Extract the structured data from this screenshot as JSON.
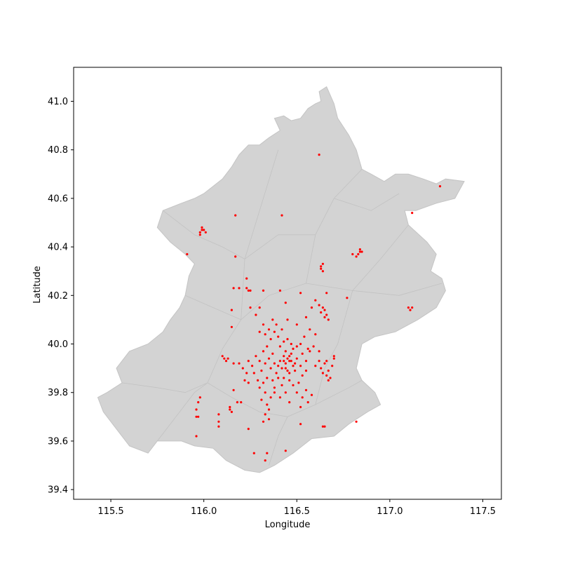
{
  "figure": {
    "xlabel": "Longitude",
    "ylabel": "Latitude",
    "title": ""
  },
  "chart_data": {
    "type": "scatter",
    "title": "",
    "xlabel": "Longitude",
    "ylabel": "Latitude",
    "xlim": [
      115.3,
      117.6
    ],
    "ylim": [
      39.36,
      41.14
    ],
    "xticks": [
      115.5,
      116.0,
      116.5,
      117.0,
      117.5
    ],
    "yticks": [
      39.4,
      39.6,
      39.8,
      40.0,
      40.2,
      40.4,
      40.6,
      40.8,
      41.0
    ],
    "xtick_labels": [
      "115.5",
      "116.0",
      "116.5",
      "117.0",
      "117.5"
    ],
    "ytick_labels": [
      "39.4",
      "39.6",
      "39.8",
      "40.0",
      "40.2",
      "40.4",
      "40.6",
      "40.8",
      "41.0"
    ],
    "grid": false,
    "legend": "none",
    "colors": {
      "points": "#ff0000",
      "region_fill": "#d3d3d3",
      "region_edge": "#c4c4c4",
      "axes": "#000000"
    },
    "background_region": "Beijing municipality district boundaries",
    "boundary": [
      [
        115.43,
        39.78
      ],
      [
        115.48,
        39.8
      ],
      [
        115.56,
        39.84
      ],
      [
        115.53,
        39.9
      ],
      [
        115.6,
        39.97
      ],
      [
        115.7,
        40.0
      ],
      [
        115.78,
        40.05
      ],
      [
        115.82,
        40.1
      ],
      [
        115.87,
        40.15
      ],
      [
        115.9,
        40.2
      ],
      [
        115.92,
        40.28
      ],
      [
        115.95,
        40.33
      ],
      [
        115.9,
        40.37
      ],
      [
        115.82,
        40.42
      ],
      [
        115.75,
        40.48
      ],
      [
        115.78,
        40.55
      ],
      [
        115.88,
        40.58
      ],
      [
        115.95,
        40.6
      ],
      [
        116.0,
        40.62
      ],
      [
        116.05,
        40.65
      ],
      [
        116.1,
        40.68
      ],
      [
        116.15,
        40.73
      ],
      [
        116.19,
        40.78
      ],
      [
        116.24,
        40.82
      ],
      [
        116.3,
        40.82
      ],
      [
        116.35,
        40.85
      ],
      [
        116.41,
        40.88
      ],
      [
        116.38,
        40.93
      ],
      [
        116.43,
        40.94
      ],
      [
        116.47,
        40.92
      ],
      [
        116.52,
        40.93
      ],
      [
        116.56,
        40.97
      ],
      [
        116.6,
        40.99
      ],
      [
        116.63,
        41.0
      ],
      [
        116.62,
        41.04
      ],
      [
        116.66,
        41.06
      ],
      [
        116.7,
        40.99
      ],
      [
        116.72,
        40.93
      ],
      [
        116.78,
        40.86
      ],
      [
        116.82,
        40.8
      ],
      [
        116.85,
        40.72
      ],
      [
        116.9,
        40.7
      ],
      [
        116.97,
        40.67
      ],
      [
        117.03,
        40.7
      ],
      [
        117.1,
        40.7
      ],
      [
        117.18,
        40.68
      ],
      [
        117.25,
        40.66
      ],
      [
        117.3,
        40.68
      ],
      [
        117.4,
        40.67
      ],
      [
        117.35,
        40.6
      ],
      [
        117.25,
        40.58
      ],
      [
        117.14,
        40.55
      ],
      [
        117.08,
        40.55
      ],
      [
        117.1,
        40.49
      ],
      [
        117.2,
        40.42
      ],
      [
        117.25,
        40.37
      ],
      [
        117.22,
        40.3
      ],
      [
        117.28,
        40.27
      ],
      [
        117.3,
        40.22
      ],
      [
        117.25,
        40.15
      ],
      [
        117.15,
        40.1
      ],
      [
        117.03,
        40.05
      ],
      [
        116.92,
        40.03
      ],
      [
        116.85,
        40.0
      ],
      [
        116.82,
        39.9
      ],
      [
        116.85,
        39.85
      ],
      [
        116.92,
        39.8
      ],
      [
        116.95,
        39.75
      ],
      [
        116.88,
        39.72
      ],
      [
        116.78,
        39.67
      ],
      [
        116.7,
        39.62
      ],
      [
        116.58,
        39.61
      ],
      [
        116.48,
        39.55
      ],
      [
        116.38,
        39.5
      ],
      [
        116.3,
        39.47
      ],
      [
        116.22,
        39.48
      ],
      [
        116.12,
        39.52
      ],
      [
        116.05,
        39.57
      ],
      [
        115.95,
        39.58
      ],
      [
        115.88,
        39.6
      ],
      [
        115.75,
        39.6
      ],
      [
        115.7,
        39.55
      ],
      [
        115.6,
        39.58
      ],
      [
        115.52,
        39.66
      ],
      [
        115.46,
        39.72
      ]
    ],
    "series": [
      {
        "points": [
          [
            116.46,
            39.93
          ],
          [
            116.44,
            39.92
          ],
          [
            116.48,
            39.91
          ],
          [
            116.42,
            39.9
          ],
          [
            116.5,
            39.94
          ],
          [
            116.47,
            39.96
          ],
          [
            116.45,
            39.89
          ],
          [
            116.41,
            39.93
          ],
          [
            116.43,
            39.95
          ],
          [
            116.49,
            39.92
          ],
          [
            116.46,
            39.88
          ],
          [
            116.52,
            39.91
          ],
          [
            116.4,
            39.91
          ],
          [
            116.44,
            39.97
          ],
          [
            116.48,
            39.98
          ],
          [
            116.47,
            40.0
          ],
          [
            116.45,
            40.02
          ],
          [
            116.5,
            39.99
          ],
          [
            116.43,
            40.01
          ],
          [
            116.41,
            39.99
          ],
          [
            116.38,
            39.92
          ],
          [
            116.36,
            39.9
          ],
          [
            116.35,
            39.94
          ],
          [
            116.37,
            39.96
          ],
          [
            116.39,
            39.88
          ],
          [
            116.33,
            39.92
          ],
          [
            116.31,
            39.89
          ],
          [
            116.3,
            39.93
          ],
          [
            116.32,
            39.97
          ],
          [
            116.34,
            39.99
          ],
          [
            116.36,
            40.02
          ],
          [
            116.38,
            40.05
          ],
          [
            116.35,
            40.06
          ],
          [
            116.33,
            40.04
          ],
          [
            116.4,
            40.03
          ],
          [
            116.42,
            40.06
          ],
          [
            116.39,
            40.08
          ],
          [
            116.37,
            40.1
          ],
          [
            116.32,
            40.08
          ],
          [
            116.3,
            40.05
          ],
          [
            116.28,
            39.95
          ],
          [
            116.26,
            39.91
          ],
          [
            116.24,
            39.93
          ],
          [
            116.27,
            39.88
          ],
          [
            116.29,
            39.85
          ],
          [
            116.32,
            39.84
          ],
          [
            116.34,
            39.86
          ],
          [
            116.37,
            39.85
          ],
          [
            116.4,
            39.86
          ],
          [
            116.43,
            39.86
          ],
          [
            116.46,
            39.85
          ],
          [
            116.48,
            39.83
          ],
          [
            116.51,
            39.84
          ],
          [
            116.53,
            39.87
          ],
          [
            116.55,
            39.89
          ],
          [
            116.55,
            39.93
          ],
          [
            116.53,
            39.96
          ],
          [
            116.56,
            39.98
          ],
          [
            116.52,
            40.0
          ],
          [
            116.54,
            40.03
          ],
          [
            116.3,
            39.82
          ],
          [
            116.33,
            39.8
          ],
          [
            116.36,
            39.78
          ],
          [
            116.38,
            39.8
          ],
          [
            116.41,
            39.78
          ],
          [
            116.44,
            39.8
          ],
          [
            116.46,
            39.76
          ],
          [
            116.34,
            39.75
          ],
          [
            116.35,
            39.73
          ],
          [
            116.33,
            39.71
          ],
          [
            116.35,
            39.69
          ],
          [
            116.31,
            39.77
          ],
          [
            116.38,
            39.82
          ],
          [
            116.42,
            39.83
          ],
          [
            116.5,
            39.8
          ],
          [
            116.53,
            39.78
          ],
          [
            116.55,
            39.81
          ],
          [
            116.56,
            39.76
          ],
          [
            116.58,
            39.79
          ],
          [
            116.52,
            39.74
          ],
          [
            116.63,
            39.9
          ],
          [
            116.65,
            39.92
          ],
          [
            116.67,
            39.89
          ],
          [
            116.66,
            39.87
          ],
          [
            116.69,
            39.91
          ],
          [
            116.68,
            39.86
          ],
          [
            116.64,
            39.88
          ],
          [
            116.7,
            39.94
          ],
          [
            116.62,
            39.93
          ],
          [
            116.6,
            39.91
          ],
          [
            116.66,
            39.93
          ],
          [
            116.67,
            39.85
          ],
          [
            116.63,
            40.13
          ],
          [
            116.65,
            40.14
          ],
          [
            116.66,
            40.12
          ],
          [
            116.65,
            40.11
          ],
          [
            116.64,
            40.15
          ],
          [
            116.67,
            40.1
          ],
          [
            116.62,
            40.16
          ],
          [
            116.6,
            40.18
          ],
          [
            116.58,
            40.15
          ],
          [
            116.55,
            40.11
          ],
          [
            116.57,
            40.06
          ],
          [
            116.6,
            40.04
          ],
          [
            116.63,
            40.31
          ],
          [
            116.64,
            40.33
          ],
          [
            116.63,
            40.32
          ],
          [
            116.64,
            40.3
          ],
          [
            116.84,
            40.38
          ],
          [
            116.83,
            40.37
          ],
          [
            116.82,
            40.36
          ],
          [
            116.85,
            40.38
          ],
          [
            116.8,
            40.37
          ],
          [
            116.84,
            40.39
          ],
          [
            117.1,
            40.15
          ],
          [
            117.11,
            40.14
          ],
          [
            117.12,
            40.15
          ],
          [
            117.27,
            40.65
          ],
          [
            117.12,
            40.54
          ],
          [
            116.62,
            40.78
          ],
          [
            116.42,
            40.53
          ],
          [
            116.17,
            40.53
          ],
          [
            115.98,
            40.46
          ],
          [
            115.99,
            40.47
          ],
          [
            115.99,
            40.48
          ],
          [
            116.0,
            40.47
          ],
          [
            116.01,
            40.46
          ],
          [
            115.98,
            40.45
          ],
          [
            115.91,
            40.37
          ],
          [
            116.17,
            40.36
          ],
          [
            116.23,
            40.27
          ],
          [
            116.23,
            40.23
          ],
          [
            116.24,
            40.22
          ],
          [
            116.25,
            40.22
          ],
          [
            116.16,
            40.23
          ],
          [
            116.19,
            40.23
          ],
          [
            116.32,
            40.22
          ],
          [
            116.41,
            40.22
          ],
          [
            116.52,
            40.21
          ],
          [
            116.66,
            40.21
          ],
          [
            116.77,
            40.19
          ],
          [
            116.44,
            40.17
          ],
          [
            116.15,
            40.14
          ],
          [
            116.25,
            40.15
          ],
          [
            116.3,
            40.15
          ],
          [
            116.15,
            40.07
          ],
          [
            116.28,
            40.12
          ],
          [
            116.45,
            40.1
          ],
          [
            116.5,
            40.08
          ],
          [
            116.1,
            39.95
          ],
          [
            116.11,
            39.94
          ],
          [
            116.12,
            39.93
          ],
          [
            116.13,
            39.94
          ],
          [
            116.16,
            39.92
          ],
          [
            116.19,
            39.92
          ],
          [
            116.21,
            39.9
          ],
          [
            116.23,
            39.88
          ],
          [
            116.22,
            39.85
          ],
          [
            116.24,
            39.84
          ],
          [
            116.16,
            39.81
          ],
          [
            116.2,
            39.76
          ],
          [
            116.18,
            39.76
          ],
          [
            116.14,
            39.74
          ],
          [
            116.14,
            39.73
          ],
          [
            116.15,
            39.72
          ],
          [
            116.08,
            39.71
          ],
          [
            116.08,
            39.68
          ],
          [
            116.08,
            39.66
          ],
          [
            115.98,
            39.78
          ],
          [
            115.97,
            39.76
          ],
          [
            115.96,
            39.73
          ],
          [
            115.96,
            39.7
          ],
          [
            115.97,
            39.7
          ],
          [
            115.96,
            39.62
          ],
          [
            116.24,
            39.65
          ],
          [
            116.32,
            39.68
          ],
          [
            116.52,
            39.67
          ],
          [
            116.64,
            39.66
          ],
          [
            116.65,
            39.66
          ],
          [
            116.82,
            39.68
          ],
          [
            116.27,
            39.55
          ],
          [
            116.33,
            39.52
          ],
          [
            116.34,
            39.55
          ],
          [
            116.44,
            39.56
          ],
          [
            116.7,
            39.95
          ],
          [
            116.62,
            39.97
          ],
          [
            116.57,
            39.97
          ],
          [
            116.59,
            39.99
          ],
          [
            116.45,
            39.94
          ],
          [
            116.47,
            39.93
          ],
          [
            116.44,
            39.9
          ],
          [
            116.49,
            39.89
          ],
          [
            116.43,
            39.93
          ],
          [
            116.46,
            39.95
          ]
        ]
      }
    ]
  }
}
